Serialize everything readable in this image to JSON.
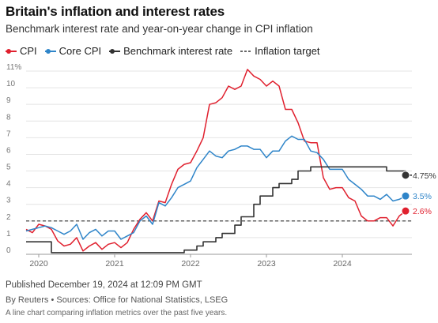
{
  "header": {
    "title": "Britain's inflation and interest rates",
    "subtitle": "Benchmark interest rate and year-on-year change in CPI inflation"
  },
  "legend": {
    "items": [
      {
        "label": "CPI",
        "marker": "dot-line",
        "color": "#e0202e"
      },
      {
        "label": "Core CPI",
        "marker": "dot-line",
        "color": "#2f85c9"
      },
      {
        "label": "Benchmark interest rate",
        "marker": "dot-line",
        "color": "#333333"
      },
      {
        "label": "Inflation target",
        "marker": "dashed-line",
        "color": "#333333"
      }
    ]
  },
  "footer": {
    "published": "Published December 19, 2024 at 12:09 PM GMT",
    "source": "By Reuters • Sources: Office for National Statistics, LSEG",
    "alt": "A line chart comparing inflation metrics over the past five years."
  },
  "chart_data": {
    "type": "line",
    "ylim": [
      0,
      11
    ],
    "y_ticks": [
      0,
      1,
      2,
      3,
      4,
      5,
      6,
      7,
      8,
      9,
      10,
      11
    ],
    "y_tick_labels": [
      "0",
      "1",
      "2",
      "3",
      "4",
      "5",
      "6",
      "7",
      "8",
      "9",
      "10",
      "11%"
    ],
    "x_range": [
      "2019-11",
      "2024-12"
    ],
    "x_ticks": [
      {
        "date": "2020-01",
        "label": "2020"
      },
      {
        "date": "2021-01",
        "label": "2021"
      },
      {
        "date": "2022-01",
        "label": "2022"
      },
      {
        "date": "2023-01",
        "label": "2023"
      },
      {
        "date": "2024-01",
        "label": "2024"
      }
    ],
    "grid": true,
    "inflation_target": 2,
    "series": [
      {
        "name": "CPI",
        "color": "#e0202e",
        "end_label": "2.6%",
        "points": [
          [
            "2019-11",
            1.5
          ],
          [
            "2019-12",
            1.3
          ],
          [
            "2020-01",
            1.8
          ],
          [
            "2020-02",
            1.7
          ],
          [
            "2020-03",
            1.5
          ],
          [
            "2020-04",
            0.8
          ],
          [
            "2020-05",
            0.5
          ],
          [
            "2020-06",
            0.6
          ],
          [
            "2020-07",
            1.0
          ],
          [
            "2020-08",
            0.2
          ],
          [
            "2020-09",
            0.5
          ],
          [
            "2020-10",
            0.7
          ],
          [
            "2020-11",
            0.3
          ],
          [
            "2020-12",
            0.6
          ],
          [
            "2021-01",
            0.7
          ],
          [
            "2021-02",
            0.4
          ],
          [
            "2021-03",
            0.7
          ],
          [
            "2021-04",
            1.5
          ],
          [
            "2021-05",
            2.1
          ],
          [
            "2021-06",
            2.5
          ],
          [
            "2021-07",
            2.0
          ],
          [
            "2021-08",
            3.2
          ],
          [
            "2021-09",
            3.1
          ],
          [
            "2021-10",
            4.2
          ],
          [
            "2021-11",
            5.1
          ],
          [
            "2021-12",
            5.4
          ],
          [
            "2022-01",
            5.5
          ],
          [
            "2022-02",
            6.2
          ],
          [
            "2022-03",
            7.0
          ],
          [
            "2022-04",
            9.0
          ],
          [
            "2022-05",
            9.1
          ],
          [
            "2022-06",
            9.4
          ],
          [
            "2022-07",
            10.1
          ],
          [
            "2022-08",
            9.9
          ],
          [
            "2022-09",
            10.1
          ],
          [
            "2022-10",
            11.1
          ],
          [
            "2022-11",
            10.7
          ],
          [
            "2022-12",
            10.5
          ],
          [
            "2023-01",
            10.1
          ],
          [
            "2023-02",
            10.4
          ],
          [
            "2023-03",
            10.1
          ],
          [
            "2023-04",
            8.7
          ],
          [
            "2023-05",
            8.7
          ],
          [
            "2023-06",
            7.9
          ],
          [
            "2023-07",
            6.8
          ],
          [
            "2023-08",
            6.7
          ],
          [
            "2023-09",
            6.7
          ],
          [
            "2023-10",
            4.6
          ],
          [
            "2023-11",
            3.9
          ],
          [
            "2023-12",
            4.0
          ],
          [
            "2024-01",
            4.0
          ],
          [
            "2024-02",
            3.4
          ],
          [
            "2024-03",
            3.2
          ],
          [
            "2024-04",
            2.3
          ],
          [
            "2024-05",
            2.0
          ],
          [
            "2024-06",
            2.0
          ],
          [
            "2024-07",
            2.2
          ],
          [
            "2024-08",
            2.2
          ],
          [
            "2024-09",
            1.7
          ],
          [
            "2024-10",
            2.3
          ],
          [
            "2024-11",
            2.6
          ]
        ]
      },
      {
        "name": "Core CPI",
        "color": "#2f85c9",
        "end_label": "3.5%",
        "points": [
          [
            "2019-11",
            1.4
          ],
          [
            "2019-12",
            1.5
          ],
          [
            "2020-01",
            1.6
          ],
          [
            "2020-02",
            1.7
          ],
          [
            "2020-03",
            1.6
          ],
          [
            "2020-04",
            1.4
          ],
          [
            "2020-05",
            1.2
          ],
          [
            "2020-06",
            1.4
          ],
          [
            "2020-07",
            1.8
          ],
          [
            "2020-08",
            0.9
          ],
          [
            "2020-09",
            1.3
          ],
          [
            "2020-10",
            1.5
          ],
          [
            "2020-11",
            1.1
          ],
          [
            "2020-12",
            1.4
          ],
          [
            "2021-01",
            1.4
          ],
          [
            "2021-02",
            0.9
          ],
          [
            "2021-03",
            1.1
          ],
          [
            "2021-04",
            1.3
          ],
          [
            "2021-05",
            2.0
          ],
          [
            "2021-06",
            2.3
          ],
          [
            "2021-07",
            1.8
          ],
          [
            "2021-08",
            3.1
          ],
          [
            "2021-09",
            2.9
          ],
          [
            "2021-10",
            3.4
          ],
          [
            "2021-11",
            4.0
          ],
          [
            "2021-12",
            4.2
          ],
          [
            "2022-01",
            4.4
          ],
          [
            "2022-02",
            5.2
          ],
          [
            "2022-03",
            5.7
          ],
          [
            "2022-04",
            6.2
          ],
          [
            "2022-05",
            5.9
          ],
          [
            "2022-06",
            5.8
          ],
          [
            "2022-07",
            6.2
          ],
          [
            "2022-08",
            6.3
          ],
          [
            "2022-09",
            6.5
          ],
          [
            "2022-10",
            6.5
          ],
          [
            "2022-11",
            6.3
          ],
          [
            "2022-12",
            6.3
          ],
          [
            "2023-01",
            5.8
          ],
          [
            "2023-02",
            6.2
          ],
          [
            "2023-03",
            6.2
          ],
          [
            "2023-04",
            6.8
          ],
          [
            "2023-05",
            7.1
          ],
          [
            "2023-06",
            6.9
          ],
          [
            "2023-07",
            6.9
          ],
          [
            "2023-08",
            6.2
          ],
          [
            "2023-09",
            6.1
          ],
          [
            "2023-10",
            5.7
          ],
          [
            "2023-11",
            5.1
          ],
          [
            "2023-12",
            5.1
          ],
          [
            "2024-01",
            5.1
          ],
          [
            "2024-02",
            4.5
          ],
          [
            "2024-03",
            4.2
          ],
          [
            "2024-04",
            3.9
          ],
          [
            "2024-05",
            3.5
          ],
          [
            "2024-06",
            3.5
          ],
          [
            "2024-07",
            3.3
          ],
          [
            "2024-08",
            3.6
          ],
          [
            "2024-09",
            3.2
          ],
          [
            "2024-10",
            3.3
          ],
          [
            "2024-11",
            3.5
          ]
        ]
      },
      {
        "name": "Benchmark interest rate",
        "color": "#333333",
        "end_label": "4.75%",
        "step": true,
        "points": [
          [
            "2019-11",
            0.75
          ],
          [
            "2020-03",
            0.1
          ],
          [
            "2021-12",
            0.25
          ],
          [
            "2022-02",
            0.5
          ],
          [
            "2022-03",
            0.75
          ],
          [
            "2022-05",
            1.0
          ],
          [
            "2022-06",
            1.25
          ],
          [
            "2022-08",
            1.75
          ],
          [
            "2022-09",
            2.25
          ],
          [
            "2022-11",
            3.0
          ],
          [
            "2022-12",
            3.5
          ],
          [
            "2023-02",
            4.0
          ],
          [
            "2023-03",
            4.25
          ],
          [
            "2023-05",
            4.5
          ],
          [
            "2023-06",
            5.0
          ],
          [
            "2023-08",
            5.25
          ],
          [
            "2024-08",
            5.0
          ],
          [
            "2024-11",
            4.75
          ],
          [
            "2024-12",
            4.75
          ]
        ]
      }
    ]
  }
}
